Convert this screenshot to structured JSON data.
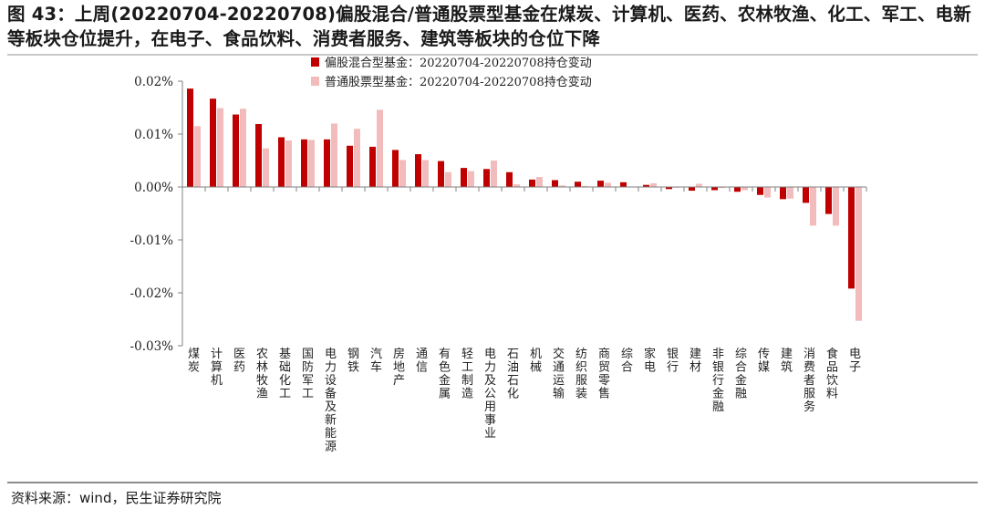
{
  "title": "图 43：上周(20220704-20220708)偏股混合/普通股票型基金在煤炭、计算机、医药、农林牧渔、化工、军工、电新等板块仓位提升，在电子、食品饮料、消费者服务、建筑等板块的仓位下降",
  "source": "资料来源：wind，民生证券研究院",
  "colors": {
    "series1": "#c00000",
    "series2": "#f2bcbc",
    "axis": "#808080"
  },
  "chart_data": {
    "type": "bar",
    "categories": [
      "煤炭",
      "计算机",
      "医药",
      "农林牧渔",
      "基础化工",
      "国防军工",
      "电力设备及新能源",
      "钢铁",
      "汽车",
      "房地产",
      "通信",
      "有色金属",
      "轻工制造",
      "电力及公用事业",
      "石油石化",
      "机械",
      "交通运输",
      "纺织服装",
      "商贸零售",
      "综合",
      "家电",
      "银行",
      "建材",
      "非银行金融",
      "综合金融",
      "传媒",
      "建筑",
      "消费者服务",
      "食品饮料",
      "电子"
    ],
    "series": [
      {
        "name": "偏股混合型基金：20220704-20220708持仓变动",
        "values": [
          0.0186,
          0.0167,
          0.0137,
          0.0119,
          0.0094,
          0.009,
          0.009,
          0.0078,
          0.0076,
          0.007,
          0.0062,
          0.0049,
          0.0036,
          0.0034,
          0.0028,
          0.0014,
          0.0013,
          0.001,
          0.0012,
          0.0009,
          0.0004,
          -0.0004,
          -0.0007,
          -0.0006,
          -0.0009,
          -0.0015,
          -0.0023,
          -0.003,
          -0.0051,
          -0.0192
        ]
      },
      {
        "name": "普通股票型基金：20220704-20220708持仓变动",
        "values": [
          0.0115,
          0.0149,
          0.0148,
          0.0073,
          0.0088,
          0.0089,
          0.012,
          0.011,
          0.0146,
          0.0051,
          0.0051,
          0.0028,
          0.003,
          0.005,
          0.0005,
          0.0019,
          0.0003,
          0.0002,
          0.0008,
          0.0001,
          0.0007,
          -0.0001,
          0.0006,
          -0.0002,
          -0.0006,
          -0.002,
          -0.0022,
          -0.0073,
          -0.0073,
          -0.0253
        ]
      }
    ],
    "ylim": [
      -0.03,
      0.02
    ],
    "yticks": [
      0.02,
      0.01,
      0.0,
      -0.01,
      -0.02,
      -0.03
    ],
    "ytick_labels": [
      "0.02%",
      "0.01%",
      "0.00%",
      "-0.01%",
      "-0.02%",
      "-0.03%"
    ],
    "legend_position": "top-center",
    "grid": false
  }
}
